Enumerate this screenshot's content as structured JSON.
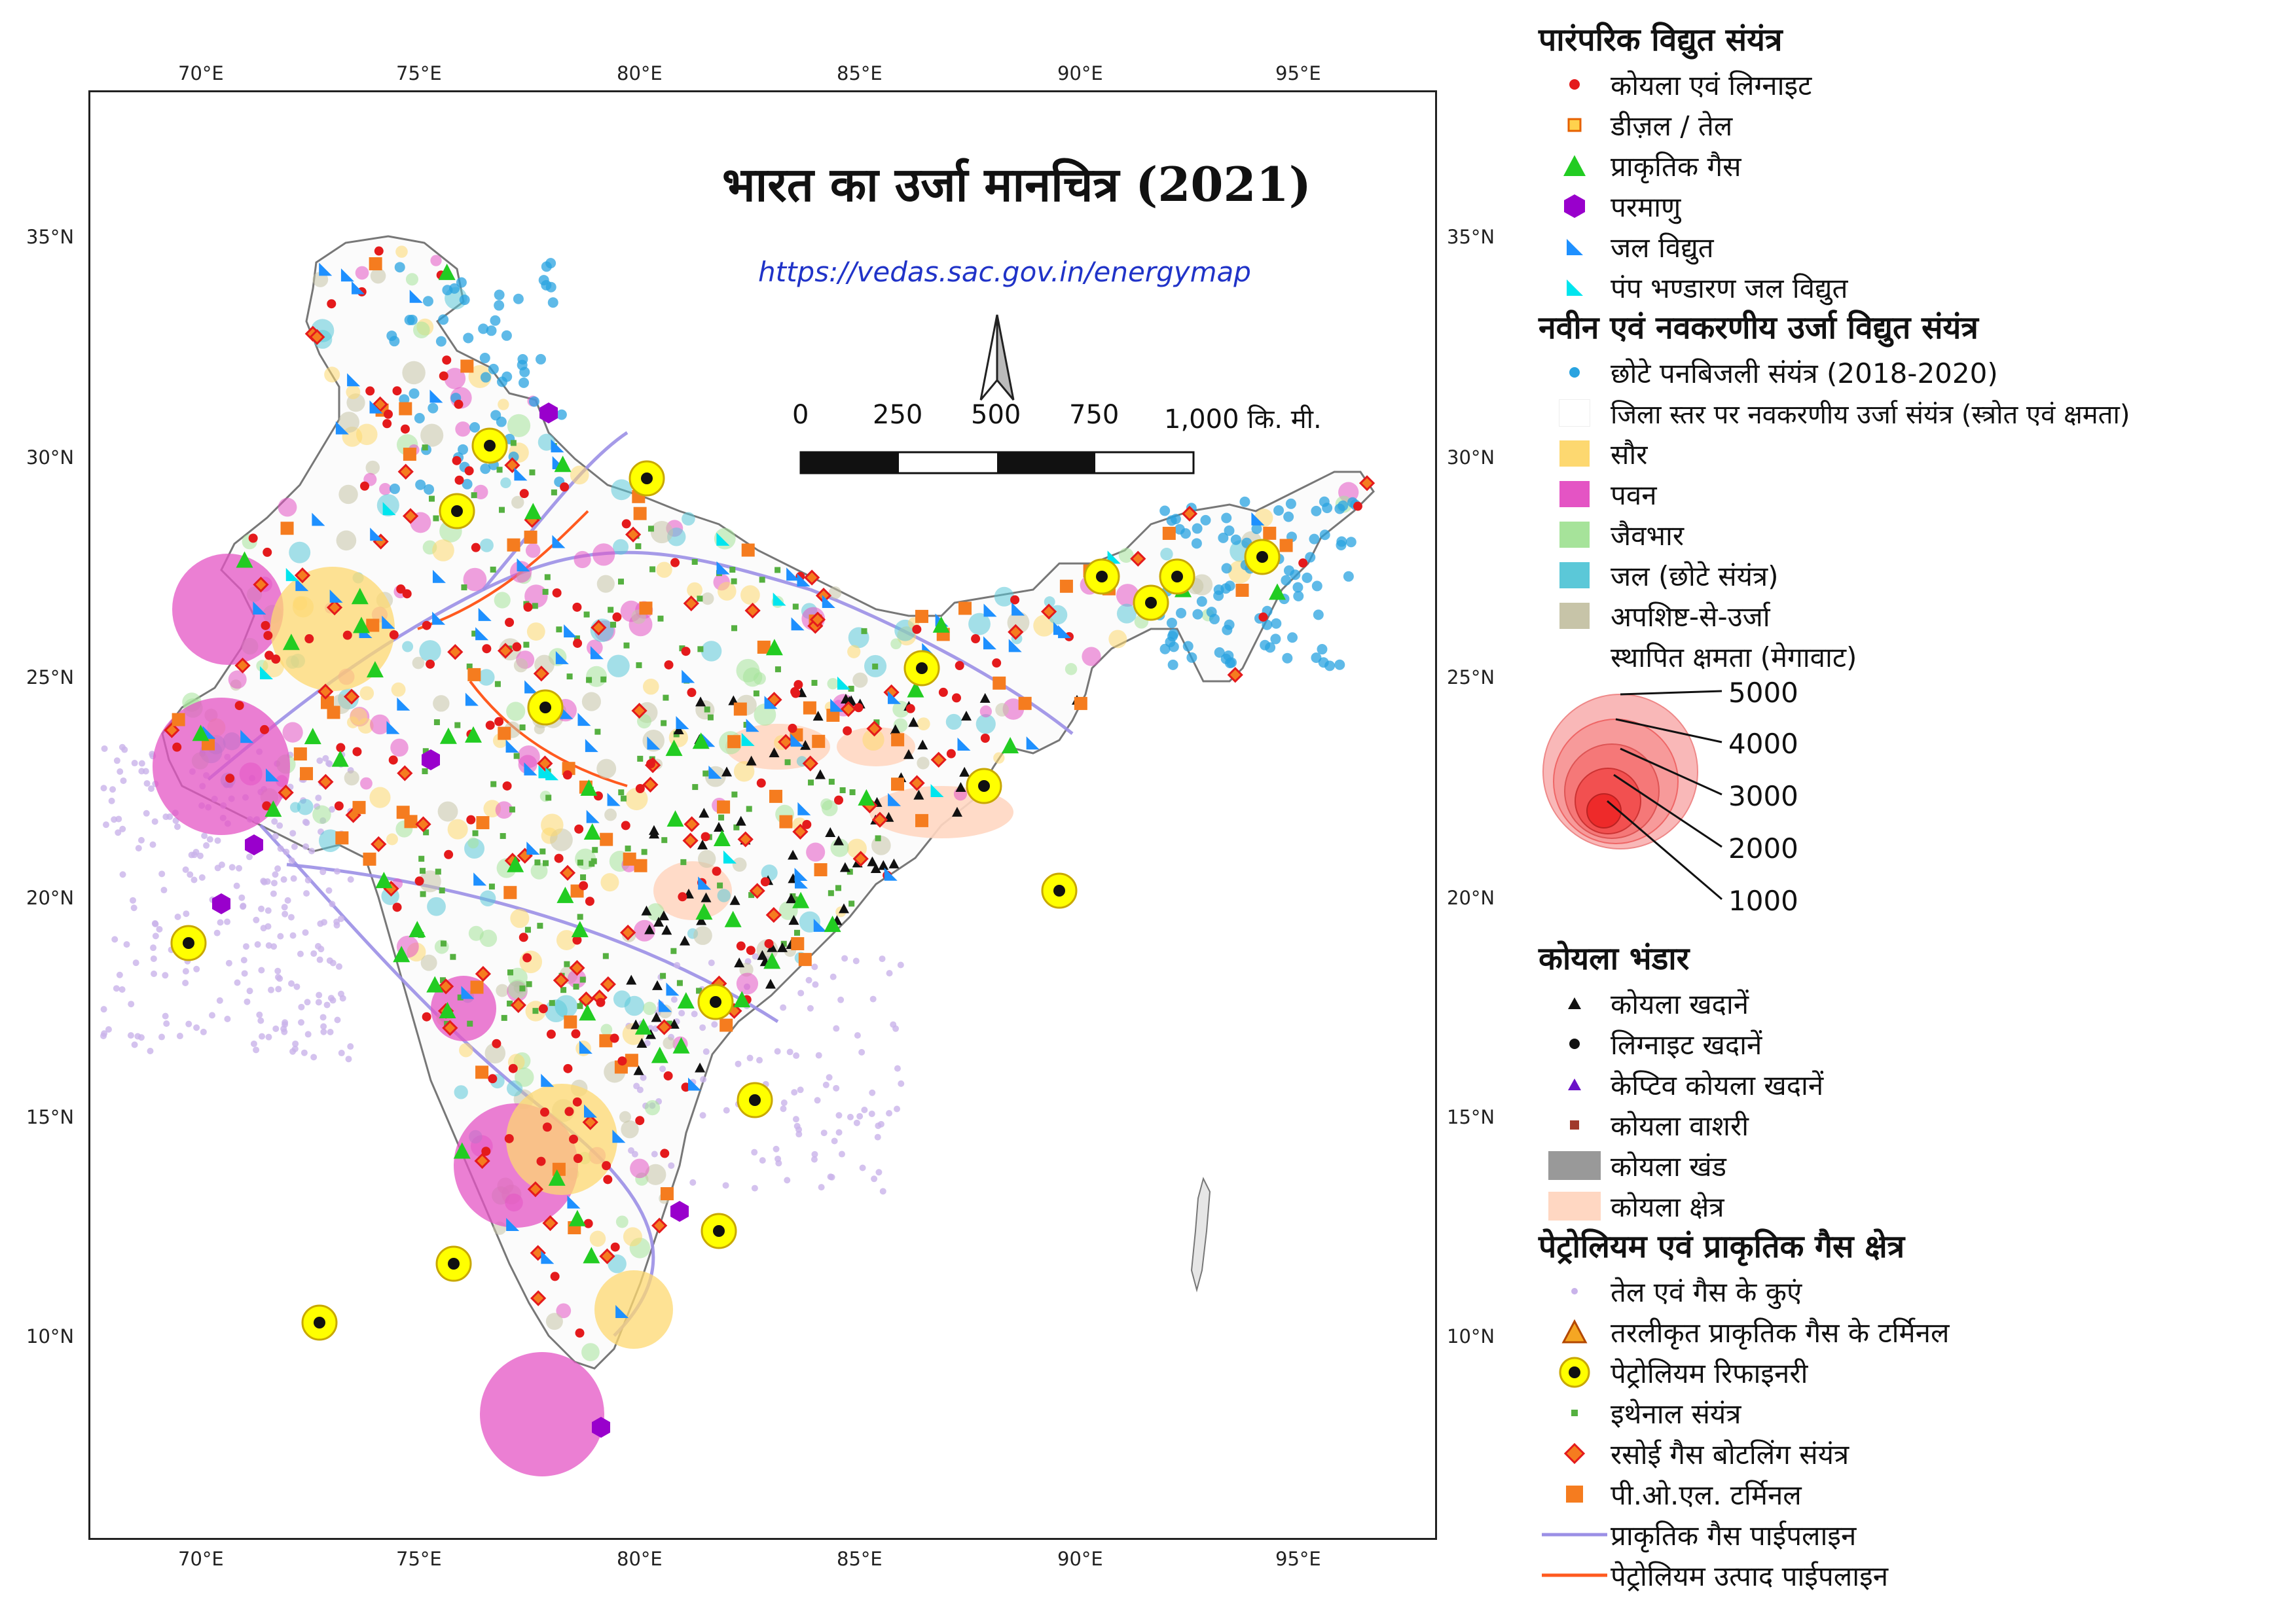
{
  "map": {
    "title": "भारत का उर्जा मानचित्र (2021)",
    "url": "https://vedas.sac.gov.in/energymap",
    "lon_ticks": [
      "70°E",
      "75°E",
      "80°E",
      "85°E",
      "90°E",
      "95°E"
    ],
    "lat_ticks": [
      "35°N",
      "30°N",
      "25°N",
      "20°N",
      "15°N",
      "10°N"
    ],
    "scale_labels": [
      "0",
      "250",
      "500",
      "750",
      "1,000 कि. मी."
    ],
    "north_arrow": "north-arrow-icon"
  },
  "colors": {
    "coal": "#e41a1c",
    "diesel": "#ff9900",
    "gas": "#22cc22",
    "nuclear": "#9900cc",
    "hydro": "#1e90ff",
    "pumped": "#00e5ee",
    "small_hydro": "#29a3e0",
    "solar": "#fdd870",
    "wind": "#e454c4",
    "biomass": "#a6e39a",
    "hydro_small": "#5bc8d8",
    "waste": "#c7c4a8",
    "refinery": "#ffff00",
    "wells": "#c9b3ea",
    "gas_pipeline": "#9b8fe6",
    "product_pipeline": "#ff5a1f",
    "pol": "#f57c1f",
    "lpg": "#f57c1f",
    "ethanol": "#55b040",
    "coal_field": "#ffd7c2",
    "coal_block": "#999999"
  },
  "legend": {
    "conventional": {
      "heading": "पारंपरिक विद्युत संयंत्र",
      "items": [
        {
          "label": "कोयला एवं लिग्नाइट",
          "icon": "red-dot-icon"
        },
        {
          "label": "डीज़ल / तेल",
          "icon": "orange-square-icon"
        },
        {
          "label": "प्राकृतिक गैस",
          "icon": "green-triangle-icon"
        },
        {
          "label": "परमाणु",
          "icon": "purple-hexagon-icon"
        },
        {
          "label": "जल विद्युत",
          "icon": "blue-right-triangle-icon"
        },
        {
          "label": "पंप भण्डारण जल विद्युत",
          "icon": "cyan-right-triangle-icon"
        }
      ]
    },
    "renewable": {
      "heading": "नवीन एवं नवकरणीय उर्जा विद्युत संयंत्र",
      "small_hydro": "छोटे पनबिजली संयंत्र (2018-2020)",
      "district": "जिला स्तर पर नवकरणीय उर्जा संयंत्र (स्त्रोत एवं क्षमता)",
      "sources": [
        {
          "label": "सौर",
          "icon": "solar-swatch-icon"
        },
        {
          "label": "पवन",
          "icon": "wind-swatch-icon"
        },
        {
          "label": "जैवभार",
          "icon": "biomass-swatch-icon"
        },
        {
          "label": "जल (छोटे संयंत्र)",
          "icon": "small-hydro-swatch-icon"
        },
        {
          "label": "अपशिष्ट-से-उर्जा",
          "icon": "waste-swatch-icon"
        }
      ],
      "capacity_title": "स्थापित क्षमता (मेगावाट)",
      "capacity_values": [
        "5000",
        "4000",
        "3000",
        "2000",
        "1000"
      ]
    },
    "coal": {
      "heading": "कोयला भंडार",
      "items": [
        {
          "label": "कोयला खदानें",
          "icon": "black-triangle-icon"
        },
        {
          "label": "लिग्नाइट खदानें",
          "icon": "black-dot-icon"
        },
        {
          "label": "केप्टिव कोयला खदानें",
          "icon": "purple-triangle-icon"
        },
        {
          "label": "कोयला वाशरी",
          "icon": "brown-square-icon"
        },
        {
          "label": "कोयला खंड",
          "icon": "grey-block-icon"
        },
        {
          "label": "कोयला क्षेत्र",
          "icon": "peach-block-icon"
        }
      ]
    },
    "petroleum": {
      "heading": "पेट्रोलियम एवं प्राकृतिक गैस क्षेत्र",
      "items": [
        {
          "label": "तेल एवं गैस के कुएं",
          "icon": "lilac-dot-icon"
        },
        {
          "label": "तरलीकृत प्राकृतिक गैस के टर्मिनल",
          "icon": "orange-triangle-icon"
        },
        {
          "label": "पेट्रोलियम रिफाइनरी",
          "icon": "refinery-icon"
        },
        {
          "label": "इथेनाल संयंत्र",
          "icon": "green-small-square-icon"
        },
        {
          "label": "रसोई गैस बोटलिंग संयंत्र",
          "icon": "red-diamond-icon"
        },
        {
          "label": "पी.ओ.एल. टर्मिनल",
          "icon": "orange-big-square-icon"
        },
        {
          "label": "प्राकृतिक गैस पाईपलाइन",
          "icon": "lilac-line-icon"
        },
        {
          "label": "पेट्रोलियम उत्पाद पाईपलाइन",
          "icon": "orange-line-icon"
        }
      ]
    }
  }
}
